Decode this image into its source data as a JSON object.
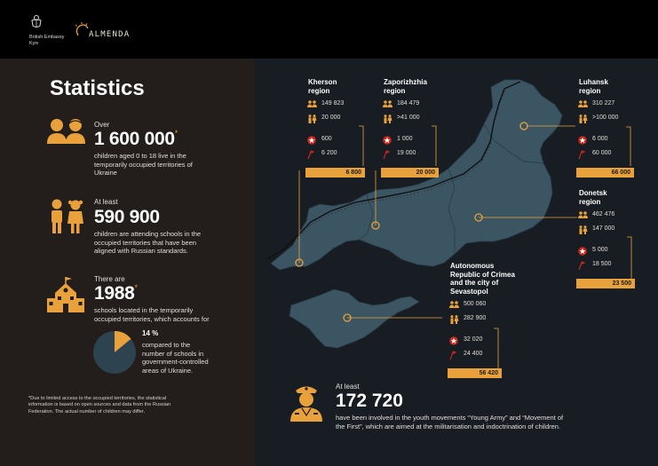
{
  "header": {
    "embassy_line1": "British Embassy",
    "embassy_line2": "Kyiv",
    "almenda": "ALMENDA"
  },
  "title": "Statistics",
  "stats": [
    {
      "pre": "Over",
      "value": "1 600 000",
      "mark": "*",
      "desc": [
        "children aged 0 to 18 live in the",
        "temporarily occupied territories of",
        "Ukraine"
      ]
    },
    {
      "pre": "At least",
      "value": "590 900",
      "mark": "",
      "desc": [
        "children are attending schools in the",
        "occupied territories that have been",
        "aligned with Russian standards."
      ]
    },
    {
      "pre": "There are",
      "value": "1988",
      "mark": "*",
      "desc": [
        "schools located in the temporarily",
        "occupied territories, which accounts for"
      ]
    }
  ],
  "pie": {
    "percent_label": "14 %",
    "fraction": 0.14,
    "desc": [
      "compared to the",
      "number of schools in",
      "government-controlled",
      "areas of Ukraine."
    ],
    "color_share": "#e9a23b",
    "color_rest": "#2d4350"
  },
  "footnote": [
    "*Due to limited access to the occupied territories, the statistical",
    "information is based on open sources and data from the Russian",
    "Federation. The actual number of children may differ."
  ],
  "regions": [
    {
      "name": [
        "Kherson",
        "region"
      ],
      "a": "149 823",
      "b": "20 000",
      "c": "600",
      "d": "6 200",
      "total": "6 800"
    },
    {
      "name": [
        "Zaporizhzhia",
        "region"
      ],
      "a": "184 479",
      "b": ">41 000",
      "c": "1 000",
      "d": "19 000",
      "total": "20 000"
    },
    {
      "name": [
        "Luhansk",
        "region"
      ],
      "a": "310 227",
      "b": ">100 000",
      "c": "6 000",
      "d": "60 000",
      "total": "66 000"
    },
    {
      "name": [
        "Donetsk",
        "region"
      ],
      "a": "462 476",
      "b": "147 000",
      "c": "5 000",
      "d": "18 500",
      "total": "23 500"
    },
    {
      "name": [
        "Autonomous",
        "Republic of Crimea",
        "and the city of",
        "Sevastopol"
      ],
      "a": "500 060",
      "b": "282 900",
      "c": "32 020",
      "d": "24 400",
      "total": "56 420"
    }
  ],
  "young": {
    "pre": "At least",
    "value": "172 720",
    "desc": [
      "have been involved in the youth movements “Young Army” and “Movement of",
      "the First”, which are aimed at the militarisation and indoctrination of children."
    ]
  },
  "colors": {
    "accent": "#e9a23b",
    "map": "#3c5563",
    "background": "#231d1c"
  }
}
